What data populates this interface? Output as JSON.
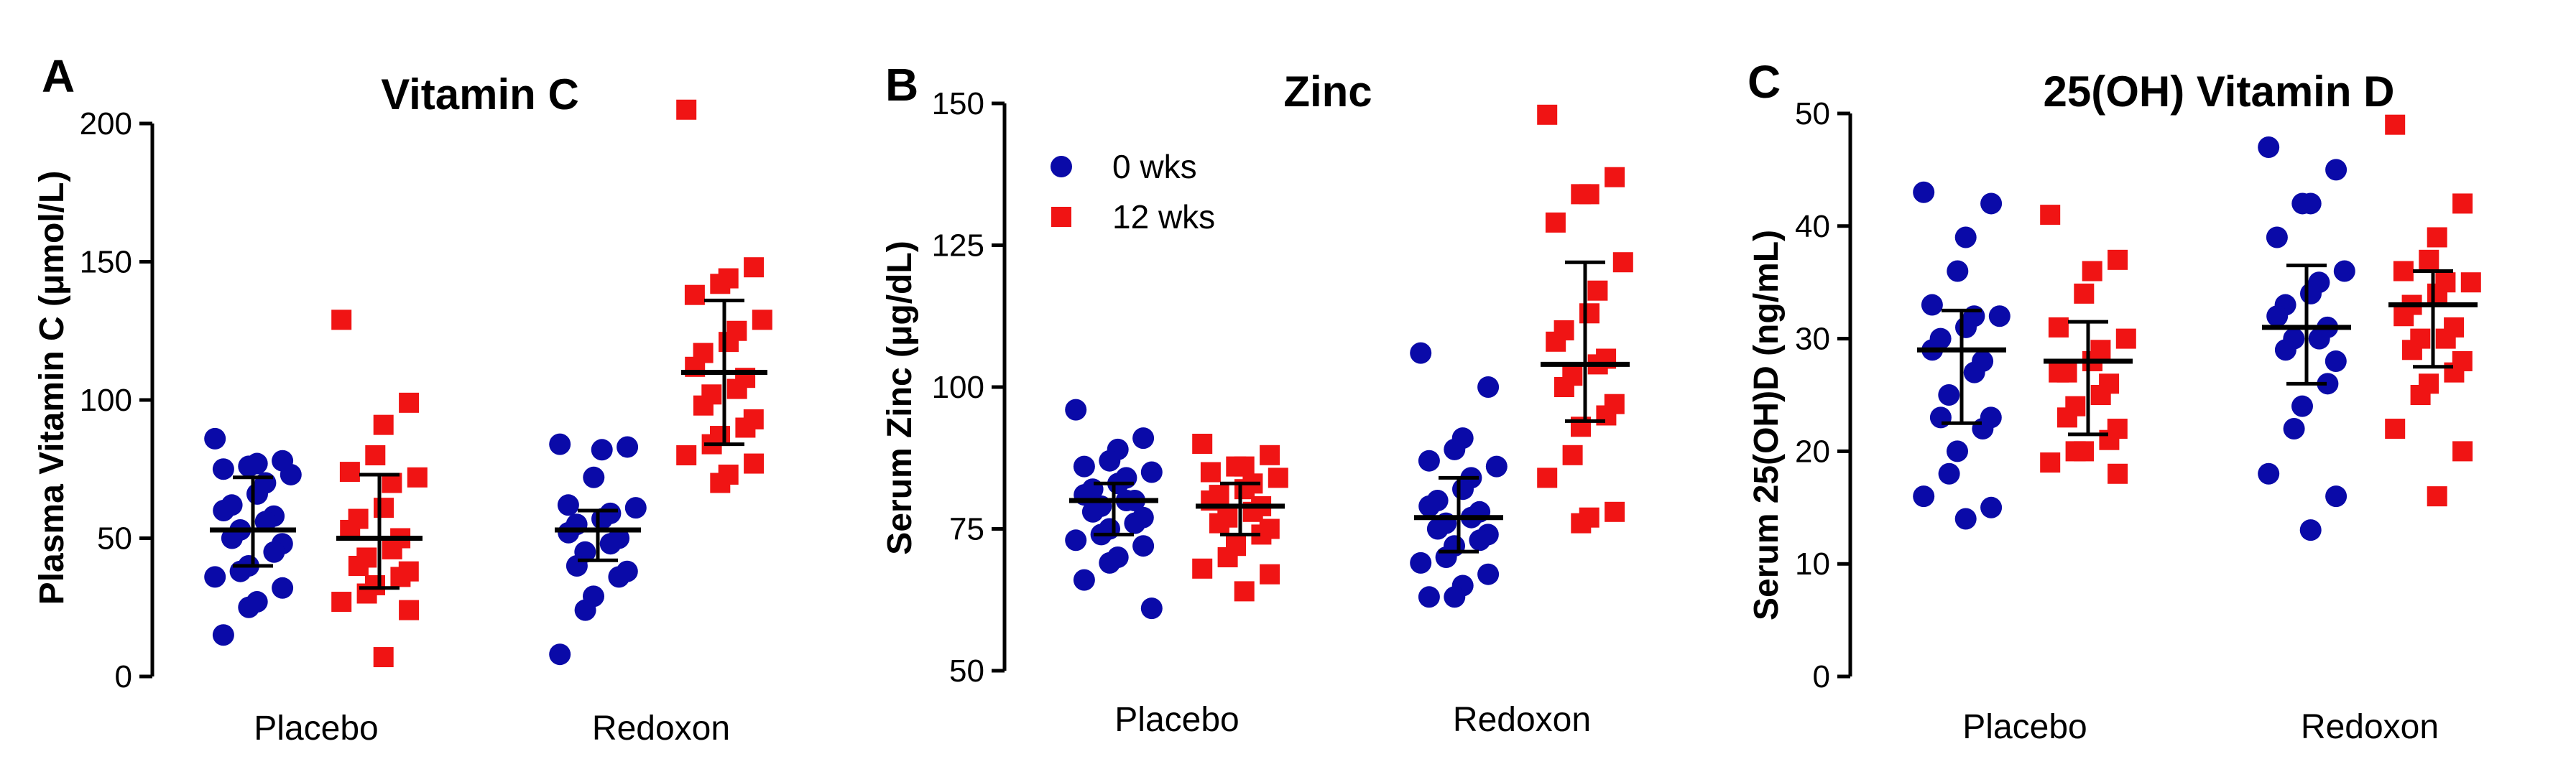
{
  "colors": {
    "wks0": "#0a0aa8",
    "wks12": "#f01414",
    "axis": "#000000"
  },
  "chart_data": [
    {
      "type": "scatter",
      "panel": "A",
      "title": "Vitamin C",
      "ylabel": "Plasma Vitamin C (μmol/L)",
      "xlabel": "",
      "ylim": [
        0,
        200
      ],
      "yticks": [
        0,
        50,
        100,
        150,
        200
      ],
      "categories": [
        "Placebo",
        "Redoxon"
      ],
      "series": [
        {
          "name": "0 wks",
          "marker": "circle",
          "groups": [
            {
              "category": "Placebo",
              "mean": 53,
              "lower": 40,
              "upper": 72,
              "values": [
                86,
                78,
                77,
                76,
                75,
                73,
                70,
                66,
                62,
                60,
                58,
                56,
                53,
                50,
                48,
                45,
                40,
                38,
                36,
                32,
                27,
                25,
                15
              ]
            },
            {
              "category": "Redoxon",
              "mean": 53,
              "lower": 42,
              "upper": 60,
              "values": [
                84,
                83,
                82,
                72,
                62,
                61,
                59,
                57,
                55,
                52,
                50,
                48,
                45,
                40,
                38,
                36,
                29,
                24,
                8
              ]
            }
          ]
        },
        {
          "name": "12 wks",
          "marker": "square",
          "groups": [
            {
              "category": "Placebo",
              "mean": 50,
              "lower": 32,
              "upper": 73,
              "values": [
                129,
                99,
                91,
                80,
                74,
                72,
                70,
                61,
                57,
                53,
                50,
                46,
                43,
                40,
                38,
                36,
                33,
                30,
                27,
                24,
                7
              ]
            },
            {
              "category": "Redoxon",
              "mean": 110,
              "lower": 84,
              "upper": 136,
              "values": [
                205,
                148,
                144,
                142,
                138,
                129,
                125,
                121,
                117,
                112,
                108,
                104,
                102,
                98,
                93,
                90,
                87,
                84,
                80,
                77,
                73,
                70
              ]
            }
          ]
        }
      ]
    },
    {
      "type": "scatter",
      "panel": "B",
      "title": "Zinc",
      "ylabel": "Serum Zinc  (μg/dL)",
      "xlabel": "",
      "ylim": [
        50,
        150
      ],
      "yticks": [
        50,
        75,
        100,
        125,
        150
      ],
      "categories": [
        "Placebo",
        "Redoxon"
      ],
      "legend": {
        "position": "top-left",
        "entries": [
          "0 wks",
          "12 wks"
        ]
      },
      "series": [
        {
          "name": "0 wks",
          "marker": "circle",
          "groups": [
            {
              "category": "Placebo",
              "mean": 80,
              "lower": 74,
              "upper": 83,
              "values": [
                96,
                91,
                89,
                87,
                86,
                85,
                84,
                83,
                82,
                81,
                80,
                80,
                79,
                78,
                77,
                76,
                75,
                74,
                73,
                72,
                70,
                69,
                66,
                61
              ]
            },
            {
              "category": "Redoxon",
              "mean": 77,
              "lower": 71,
              "upper": 84,
              "values": [
                106,
                100,
                91,
                89,
                87,
                86,
                84,
                82,
                80,
                79,
                78,
                77,
                76,
                75,
                74,
                73,
                72,
                70,
                69,
                67,
                65,
                63,
                63
              ]
            }
          ]
        },
        {
          "name": "12 wks",
          "marker": "square",
          "groups": [
            {
              "category": "Placebo",
              "mean": 79,
              "lower": 74,
              "upper": 83,
              "values": [
                90,
                88,
                86,
                86,
                85,
                84,
                83,
                82,
                81,
                80,
                79,
                78,
                77,
                76,
                75,
                74,
                72,
                70,
                68,
                67,
                64
              ]
            },
            {
              "category": "Redoxon",
              "mean": 104,
              "lower": 94,
              "upper": 122,
              "values": [
                148,
                137,
                134,
                134,
                129,
                122,
                117,
                113,
                110,
                108,
                105,
                104,
                102,
                100,
                97,
                95,
                93,
                88,
                84,
                78,
                77,
                76
              ]
            }
          ]
        }
      ]
    },
    {
      "type": "scatter",
      "panel": "C",
      "title": "25(OH) Vitamin D",
      "ylabel": "Serum 25(OH)D (ng/mL)",
      "xlabel": "",
      "ylim": [
        0,
        50
      ],
      "yticks": [
        0,
        10,
        20,
        30,
        40,
        50
      ],
      "categories": [
        "Placebo",
        "Redoxon"
      ],
      "series": [
        {
          "name": "0 wks",
          "marker": "circle",
          "groups": [
            {
              "category": "Placebo",
              "mean": 29,
              "lower": 22.5,
              "upper": 32.5,
              "values": [
                43,
                42,
                39,
                36,
                33,
                32,
                32,
                31,
                30,
                29,
                28,
                27,
                25,
                23,
                23,
                22,
                20,
                18,
                16,
                15,
                14
              ]
            },
            {
              "category": "Redoxon",
              "mean": 31,
              "lower": 26,
              "upper": 36.5,
              "values": [
                47,
                45,
                42,
                42,
                39,
                36,
                35,
                34,
                33,
                32,
                31,
                30,
                30,
                29,
                28,
                26,
                24,
                22,
                18,
                16,
                13
              ]
            }
          ]
        },
        {
          "name": "12 wks",
          "marker": "square",
          "groups": [
            {
              "category": "Placebo",
              "mean": 28,
              "lower": 21.5,
              "upper": 31.5,
              "values": [
                41,
                37,
                36,
                34,
                31,
                30,
                29,
                28,
                27,
                27,
                26,
                25,
                24,
                23,
                22,
                21,
                20,
                20,
                19,
                18
              ]
            },
            {
              "category": "Redoxon",
              "mean": 33,
              "lower": 27.5,
              "upper": 36,
              "values": [
                49,
                42,
                39,
                37,
                36,
                35,
                35,
                34,
                33,
                32,
                31,
                30,
                30,
                29,
                28,
                27,
                26,
                25,
                22,
                20,
                16
              ]
            }
          ]
        }
      ]
    }
  ]
}
